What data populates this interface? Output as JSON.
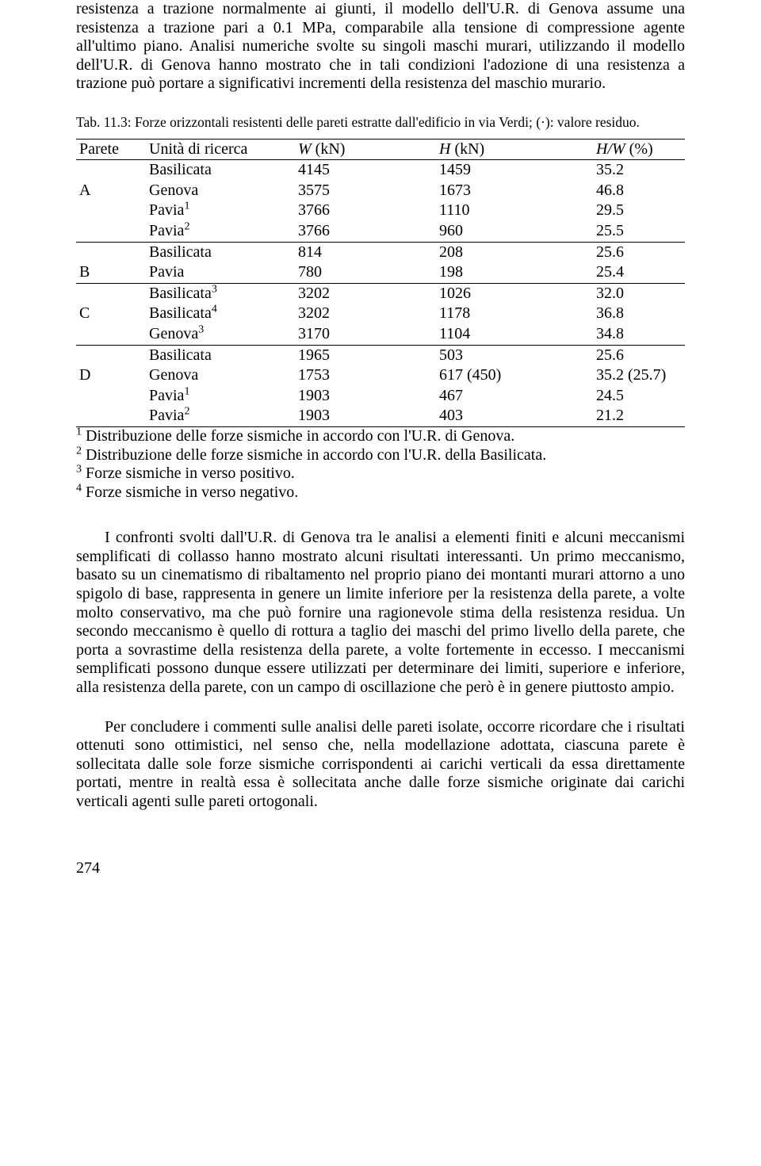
{
  "text": {
    "intro": "resistenza a trazione normalmente ai giunti, il modello dell'U.R. di Genova assume una resistenza a trazione pari a 0.1 MPa, comparabile alla tensione di compressione agente all'ultimo piano. Analisi numeriche svolte su singoli maschi murari, utilizzando il modello dell'U.R. di Genova hanno mostrato che in tali condizioni l'adozione di una resistenza a trazione può portare a significativi incrementi della resistenza del maschio murario.",
    "caption": "Tab. 11.3: Forze orizzontali resistenti delle pareti estratte dall'edificio in via Verdi; (·): valore residuo.",
    "para2": "I confronti svolti dall'U.R. di Genova tra le analisi a elementi finiti e alcuni meccanismi semplificati di collasso hanno mostrato alcuni risultati interessanti. Un primo meccanismo, basato su un cinematismo di ribaltamento nel proprio piano dei montanti murari attorno a uno spigolo di base, rappresenta in genere un limite inferiore per la resistenza della parete, a volte molto conservativo, ma che può fornire una ragionevole stima della resistenza residua. Un secondo meccanismo è quello di rottura a taglio dei maschi del primo livello della parete, che porta a sovrastime della resistenza della parete, a volte fortemente in eccesso. I meccanismi semplificati possono dunque essere utilizzati per determinare dei limiti, superiore e inferiore, alla resistenza della parete, con un campo di oscillazione che però è in genere piuttosto ampio.",
    "para3": "Per concludere i commenti sulle analisi delle pareti isolate, occorre ricordare che i risultati ottenuti sono ottimistici, nel senso che, nella modellazione adottata, ciascuna parete è sollecitata dalle sole forze sismiche corrispondenti ai carichi verticali da essa direttamente portati, mentre in realtà essa è sollecitata anche dalle forze sismiche originate dai carichi verticali agenti sulle pareti ortogonali.",
    "pagenum": "274"
  },
  "table": {
    "headers": {
      "c1": "Parete",
      "c2": "Unità di ricerca",
      "c3_pre": "W",
      "c3_post": " (kN)",
      "c4_pre": "H",
      "c4_post": " (kN)",
      "c5_pre": "H/W",
      "c5_post": " (%)"
    },
    "groups": [
      {
        "label": "A",
        "rows": [
          {
            "unit": "Basilicata",
            "sup": "",
            "w": "4145",
            "h": "1459",
            "hw": "35.2"
          },
          {
            "unit": "Genova",
            "sup": "",
            "w": "3575",
            "h": "1673",
            "hw": "46.8"
          },
          {
            "unit": "Pavia",
            "sup": "1",
            "w": "3766",
            "h": "1110",
            "hw": "29.5"
          },
          {
            "unit": "Pavia",
            "sup": "2",
            "w": "3766",
            "h": "960",
            "hw": "25.5"
          }
        ]
      },
      {
        "label": "B",
        "rows": [
          {
            "unit": "Basilicata",
            "sup": "",
            "w": "814",
            "h": "208",
            "hw": "25.6"
          },
          {
            "unit": "Pavia",
            "sup": "",
            "w": "780",
            "h": "198",
            "hw": "25.4"
          }
        ]
      },
      {
        "label": "C",
        "rows": [
          {
            "unit": "Basilicata",
            "sup": "3",
            "w": "3202",
            "h": "1026",
            "hw": "32.0"
          },
          {
            "unit": "Basilicata",
            "sup": "4",
            "w": "3202",
            "h": "1178",
            "hw": "36.8"
          },
          {
            "unit": "Genova",
            "sup": "3",
            "w": "3170",
            "h": "1104",
            "hw": "34.8"
          }
        ]
      },
      {
        "label": "D",
        "rows": [
          {
            "unit": "Basilicata",
            "sup": "",
            "w": "1965",
            "h": "503",
            "hw": "25.6"
          },
          {
            "unit": "Genova",
            "sup": "",
            "w": "1753",
            "h": "617  (450)",
            "hw": "35.2  (25.7)"
          },
          {
            "unit": "Pavia",
            "sup": "1",
            "w": "1903",
            "h": "467",
            "hw": "24.5"
          },
          {
            "unit": "Pavia",
            "sup": "2",
            "w": "1903",
            "h": "403",
            "hw": "21.2"
          }
        ]
      }
    ]
  },
  "footnotes": [
    {
      "sup": "1",
      "text": " Distribuzione delle forze sismiche in accordo con l'U.R. di Genova."
    },
    {
      "sup": "2",
      "text": " Distribuzione delle forze sismiche in accordo con l'U.R. della Basilicata."
    },
    {
      "sup": "3",
      "text": " Forze sismiche in verso positivo."
    },
    {
      "sup": "4",
      "text": " Forze sismiche in verso negativo."
    }
  ]
}
